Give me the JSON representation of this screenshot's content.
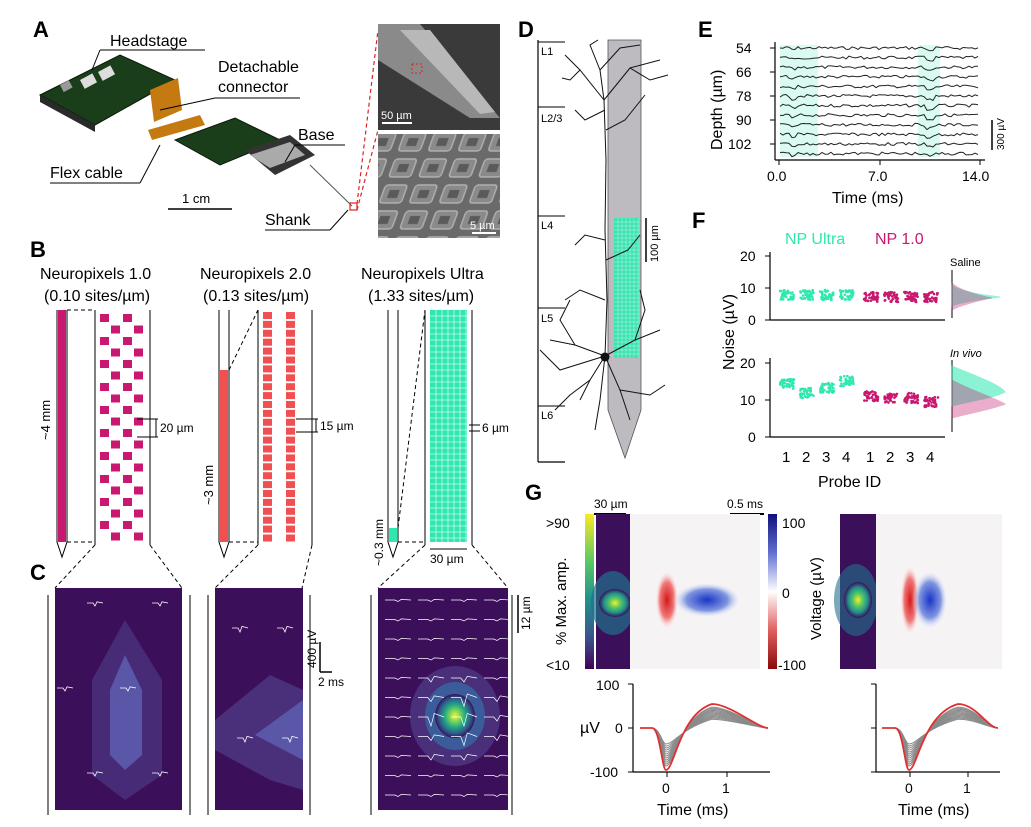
{
  "colors": {
    "magenta": "#c8186f",
    "red": "#f05050",
    "teal": "#2ee8b0",
    "purple": "#3b0f5a",
    "gray": "#bdbbbf",
    "trace_red": "#e03030"
  },
  "panel_a": {
    "letter": "A",
    "headstage": "Headstage",
    "connector_line1": "Detachable",
    "connector_line2": "connector",
    "flex_cable": "Flex cable",
    "base": "Base",
    "shank": "Shank",
    "scale_cm": "1 cm",
    "sem_scale_top": "50 µm",
    "sem_scale_bottom": "5 µm"
  },
  "panel_b": {
    "letter": "B",
    "probes": [
      {
        "name": "Neuropixels 1.0",
        "density": "(0.10 sites/µm)",
        "length": "~4 mm",
        "pitch": "20 µm"
      },
      {
        "name": "Neuropixels 2.0",
        "density": "(0.13 sites/µm)",
        "length": "~3 mm",
        "pitch": "15 µm"
      },
      {
        "name": "Neuropixels Ultra",
        "density": "(1.33 sites/µm)",
        "length": "~0.3 mm",
        "pitch": "6 µm",
        "width": "30 µm"
      }
    ]
  },
  "panel_c": {
    "letter": "C",
    "voltage_scale": "400 µV",
    "time_scale": "2 ms",
    "space_scale": "12 µm"
  },
  "panel_d": {
    "letter": "D",
    "layers": [
      "L1",
      "L2/3",
      "L4",
      "L5",
      "L6"
    ],
    "scale": "100 µm"
  },
  "panel_e": {
    "letter": "E",
    "ylabel": "Depth (µm)",
    "xlabel": "Time (ms)",
    "yticks": [
      "54",
      "66",
      "78",
      "90",
      "102"
    ],
    "xticks": [
      "0.0",
      "7.0",
      "14.0"
    ],
    "scale": "300 µV"
  },
  "panel_f": {
    "letter": "F",
    "legend_ultra": "NP Ultra",
    "legend_np1": "NP 1.0",
    "ylabel": "Noise (µV)",
    "xlabel": "Probe ID",
    "condition_top": "Saline",
    "condition_bottom": "In vivo",
    "yticks": [
      "0",
      "10",
      "20"
    ],
    "probe_ids": [
      "1",
      "2",
      "3",
      "4"
    ]
  },
  "panel_g": {
    "letter": "G",
    "space_scale": "30 µm",
    "time_scale": "0.5 ms",
    "amp_label": "% Max. amp.",
    "amp_high": ">90",
    "amp_low": "<10",
    "voltage_label": "Voltage (µV)",
    "colorbar_ticks": [
      "100",
      "0",
      "-100"
    ],
    "trace_ylabel": "µV",
    "trace_yticks": [
      "100",
      "0",
      "-100"
    ],
    "trace_xticks": [
      "0",
      "1"
    ],
    "xlabel": "Time (ms)"
  }
}
